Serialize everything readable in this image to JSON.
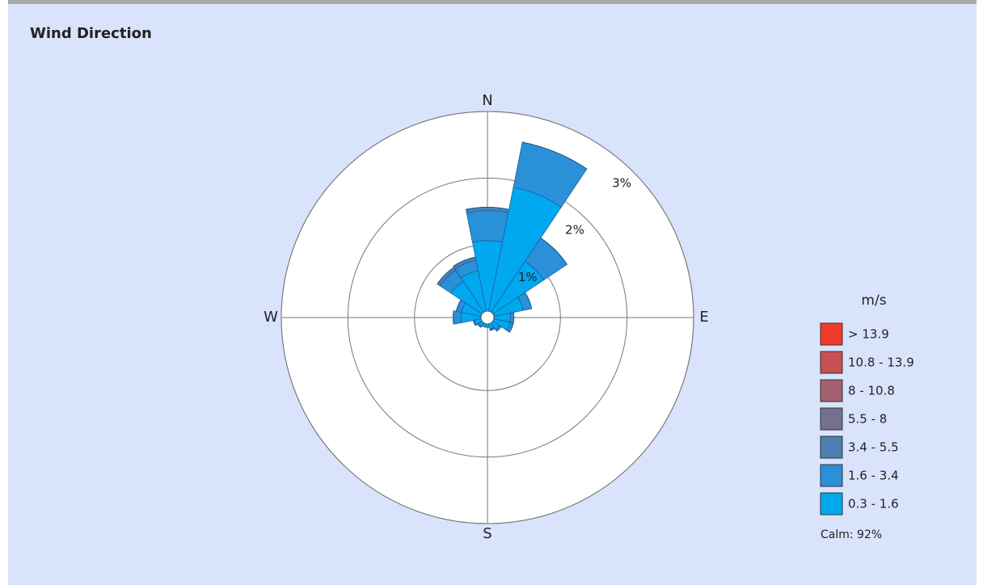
{
  "chart_data": {
    "type": "windrose",
    "title": "Wind Direction",
    "categories": [
      "N",
      null,
      null,
      null,
      "E",
      null,
      null,
      null,
      "S",
      null,
      null,
      null,
      "W",
      null,
      null,
      null
    ],
    "series": [
      {
        "name": "0.3 - 1.6",
        "color": "#00a8f0",
        "values": [
          1.06,
          1.9,
          0.92,
          0.45,
          0.25,
          0.25,
          0.12,
          0.08,
          0.05,
          0.05,
          0.06,
          0.1,
          0.3,
          0.3,
          0.56,
          0.62
        ]
      },
      {
        "name": "1.6 - 3.4",
        "color": "#2a90d8",
        "values": [
          0.45,
          0.69,
          0.42,
          0.13,
          0.05,
          0.05,
          0.03,
          0.02,
          0,
          0,
          0.02,
          0.02,
          0.12,
          0.08,
          0.2,
          0.16
        ]
      },
      {
        "name": "3.4 - 5.5",
        "color": "#4a80b0",
        "values": [
          0.05,
          0,
          0,
          0,
          0,
          0,
          0,
          0,
          0,
          0,
          0,
          0,
          0,
          0,
          0.05,
          0.05
        ]
      },
      {
        "name": "5.5 - 8",
        "color": "#767090",
        "values": [
          0,
          0,
          0,
          0,
          0,
          0,
          0,
          0,
          0,
          0,
          0,
          0,
          0,
          0,
          0,
          0
        ]
      },
      {
        "name": "8 - 10.8",
        "color": "#a56070",
        "values": [
          0,
          0,
          0,
          0,
          0,
          0,
          0,
          0,
          0,
          0,
          0,
          0,
          0,
          0,
          0,
          0
        ]
      },
      {
        "name": "10.8 - 13.9",
        "color": "#c75050",
        "values": [
          0,
          0,
          0,
          0,
          0,
          0,
          0,
          0,
          0,
          0,
          0,
          0,
          0,
          0,
          0,
          0
        ]
      },
      {
        "name": "> 13.9",
        "color": "#ef3b2c",
        "values": [
          0,
          0,
          0,
          0,
          0,
          0,
          0,
          0,
          0,
          0,
          0,
          0,
          0,
          0,
          0,
          0
        ]
      }
    ],
    "rlim": [
      0,
      3
    ],
    "rticks": [
      {
        "value": 1,
        "label": "1%"
      },
      {
        "value": 2,
        "label": "2%"
      },
      {
        "value": 3,
        "label": "3%"
      }
    ],
    "legend_title": "m/s",
    "calm_label": "Calm: 92%",
    "legend": "right"
  }
}
